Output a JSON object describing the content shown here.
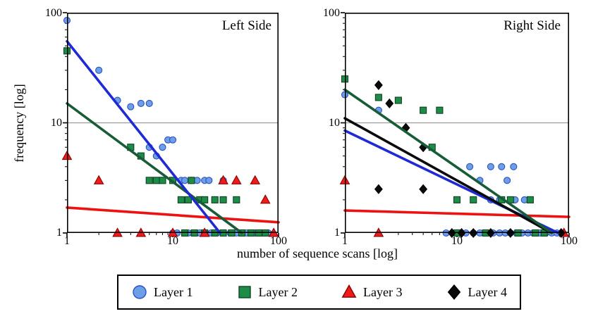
{
  "figure": {
    "xlabel": "number of sequence scans [log]",
    "ylabel": "frequency [log]"
  },
  "axes": {
    "yticks": [
      "100",
      "10",
      "1"
    ],
    "xticks": [
      "1",
      "10",
      "100"
    ]
  },
  "legend": {
    "items": [
      {
        "label": "Layer 1",
        "marker": "circle",
        "fill": "#6e9ee6",
        "stroke": "#2b50c8"
      },
      {
        "label": "Layer 2",
        "marker": "square",
        "fill": "#1e8c46",
        "stroke": "#0b4423"
      },
      {
        "label": "Layer 3",
        "marker": "triangle",
        "fill": "#ef1a1a",
        "stroke": "#8c0000"
      },
      {
        "label": "Layer 4",
        "marker": "diamond",
        "fill": "#0a0a0a",
        "stroke": "#000000"
      }
    ]
  },
  "chart_data": [
    {
      "type": "scatter",
      "title": "Left Side",
      "xscale": "log",
      "yscale": "log",
      "xlim": [
        1,
        100
      ],
      "ylim": [
        1,
        100
      ],
      "grid_y": [
        10
      ],
      "series": [
        {
          "name": "Layer 1",
          "marker": "circle",
          "size": 9,
          "fill": "#6e9ee6",
          "stroke": "#2b50c8",
          "points": [
            [
              1,
              85
            ],
            [
              2,
              30
            ],
            [
              3,
              16
            ],
            [
              4,
              14
            ],
            [
              5,
              15
            ],
            [
              6,
              15
            ],
            [
              6,
              6
            ],
            [
              7,
              5
            ],
            [
              8,
              6
            ],
            [
              9,
              7
            ],
            [
              10,
              7
            ],
            [
              12,
              3
            ],
            [
              13,
              3
            ],
            [
              15,
              3
            ],
            [
              17,
              3
            ],
            [
              20,
              3
            ],
            [
              22,
              3
            ],
            [
              25,
              2
            ],
            [
              30,
              3
            ],
            [
              10,
              1
            ],
            [
              11,
              1
            ],
            [
              13,
              1
            ],
            [
              14,
              1
            ],
            [
              16,
              1
            ],
            [
              18,
              1
            ],
            [
              20,
              1
            ],
            [
              23,
              1
            ],
            [
              26,
              1
            ],
            [
              30,
              1
            ],
            [
              35,
              1
            ],
            [
              40,
              1
            ],
            [
              45,
              1
            ],
            [
              50,
              1
            ],
            [
              60,
              1
            ],
            [
              70,
              1
            ],
            [
              80,
              1
            ]
          ]
        },
        {
          "name": "Layer 2",
          "marker": "square",
          "size": 9,
          "fill": "#1e8c46",
          "stroke": "#0b4423",
          "points": [
            [
              1,
              45
            ],
            [
              4,
              6
            ],
            [
              5,
              5
            ],
            [
              6,
              3
            ],
            [
              7,
              3
            ],
            [
              8,
              3
            ],
            [
              10,
              3
            ],
            [
              15,
              3
            ],
            [
              12,
              2
            ],
            [
              14,
              2
            ],
            [
              18,
              2
            ],
            [
              20,
              2
            ],
            [
              25,
              2
            ],
            [
              30,
              2
            ],
            [
              40,
              2
            ],
            [
              13,
              1
            ],
            [
              16,
              1
            ],
            [
              20,
              1
            ],
            [
              25,
              1
            ],
            [
              30,
              1
            ],
            [
              36,
              1
            ],
            [
              45,
              1
            ],
            [
              55,
              1
            ],
            [
              65,
              1
            ],
            [
              75,
              1
            ]
          ]
        },
        {
          "name": "Layer 3",
          "marker": "triangle",
          "size": 11,
          "fill": "#ef1a1a",
          "stroke": "#8c0000",
          "points": [
            [
              1,
              5
            ],
            [
              2,
              3
            ],
            [
              30,
              3
            ],
            [
              40,
              3
            ],
            [
              60,
              3
            ],
            [
              75,
              2
            ],
            [
              3,
              1
            ],
            [
              5,
              1
            ],
            [
              10,
              1
            ],
            [
              20,
              1
            ],
            [
              90,
              1
            ]
          ]
        }
      ],
      "fit_lines": [
        {
          "series": "Layer 3",
          "color": "#ee1111",
          "x": [
            1,
            100
          ],
          "y": [
            1.7,
            1.25
          ]
        },
        {
          "series": "Layer 2",
          "color": "#175c36",
          "x": [
            1,
            45
          ],
          "y": [
            15,
            1
          ]
        },
        {
          "series": "Layer 1",
          "color": "#1f2ad4",
          "x": [
            1,
            28
          ],
          "y": [
            55,
            1
          ]
        }
      ]
    },
    {
      "type": "scatter",
      "title": "Right Side",
      "xscale": "log",
      "yscale": "log",
      "xlim": [
        1,
        100
      ],
      "ylim": [
        1,
        100
      ],
      "grid_y": [
        10
      ],
      "series": [
        {
          "name": "Layer 1",
          "marker": "circle",
          "size": 9,
          "fill": "#6e9ee6",
          "stroke": "#2b50c8",
          "points": [
            [
              1,
              18
            ],
            [
              2,
              13
            ],
            [
              13,
              4
            ],
            [
              16,
              3
            ],
            [
              20,
              4
            ],
            [
              25,
              4
            ],
            [
              28,
              3
            ],
            [
              32,
              4
            ],
            [
              20,
              2
            ],
            [
              24,
              2
            ],
            [
              33,
              2
            ],
            [
              40,
              2
            ],
            [
              8,
              1
            ],
            [
              10,
              1
            ],
            [
              12,
              1
            ],
            [
              14,
              1
            ],
            [
              16,
              1
            ],
            [
              18,
              1
            ],
            [
              21,
              1
            ],
            [
              24,
              1
            ],
            [
              27,
              1
            ],
            [
              30,
              1
            ],
            [
              34,
              1
            ],
            [
              38,
              1
            ],
            [
              43,
              1
            ],
            [
              48,
              1
            ],
            [
              55,
              1
            ],
            [
              62,
              1
            ],
            [
              70,
              1
            ],
            [
              78,
              1
            ]
          ]
        },
        {
          "name": "Layer 2",
          "marker": "square",
          "size": 9,
          "fill": "#1e8c46",
          "stroke": "#0b4423",
          "points": [
            [
              1,
              25
            ],
            [
              2,
              17
            ],
            [
              3,
              16
            ],
            [
              5,
              13
            ],
            [
              7,
              13
            ],
            [
              6,
              6
            ],
            [
              10,
              2
            ],
            [
              14,
              2
            ],
            [
              25,
              2
            ],
            [
              30,
              2
            ],
            [
              45,
              2
            ],
            [
              10,
              1
            ],
            [
              18,
              1
            ],
            [
              35,
              1
            ],
            [
              50,
              1
            ],
            [
              60,
              1
            ]
          ]
        },
        {
          "name": "Layer 3",
          "marker": "triangle",
          "size": 11,
          "fill": "#ef1a1a",
          "stroke": "#8c0000",
          "points": [
            [
              1,
              3
            ],
            [
              2,
              1
            ],
            [
              90,
              1
            ]
          ]
        },
        {
          "name": "Layer 4",
          "marker": "diamond",
          "size": 10,
          "fill": "#0a0a0a",
          "stroke": "#000000",
          "points": [
            [
              2,
              22
            ],
            [
              2.5,
              15
            ],
            [
              3.5,
              9
            ],
            [
              5,
              6
            ],
            [
              2,
              2.5
            ],
            [
              5,
              2.5
            ],
            [
              9,
              1
            ],
            [
              11,
              1
            ],
            [
              14,
              1
            ],
            [
              20,
              1
            ],
            [
              30,
              1
            ],
            [
              85,
              1
            ]
          ]
        }
      ],
      "fit_lines": [
        {
          "series": "Layer 3",
          "color": "#ee1111",
          "x": [
            1,
            100
          ],
          "y": [
            1.6,
            1.4
          ]
        },
        {
          "series": "Layer 1",
          "color": "#1f2ad4",
          "x": [
            1,
            80
          ],
          "y": [
            8.5,
            1
          ]
        },
        {
          "series": "Layer 4",
          "color": "#0a0a0a",
          "x": [
            1,
            70
          ],
          "y": [
            11,
            1
          ]
        },
        {
          "series": "Layer 2",
          "color": "#175c36",
          "x": [
            1,
            70
          ],
          "y": [
            20,
            1
          ]
        }
      ]
    }
  ]
}
